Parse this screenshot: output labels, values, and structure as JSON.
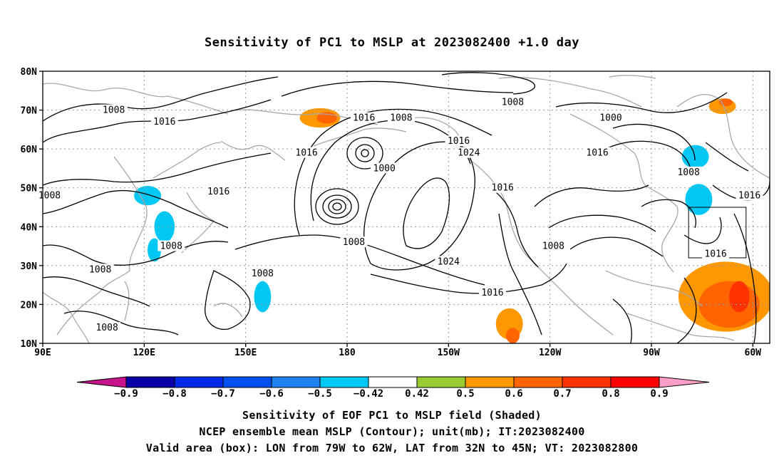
{
  "title": "Sensitivity of PC1 to MSLP at 2023082400 +1.0 day",
  "map": {
    "lon_range": [
      90,
      305
    ],
    "lat_range": [
      10,
      80
    ],
    "lat_ticks": [
      "80N",
      "70N",
      "60N",
      "50N",
      "40N",
      "30N",
      "20N",
      "10N"
    ],
    "lon_ticks": [
      "90E",
      "120E",
      "150E",
      "180",
      "150W",
      "120W",
      "90W",
      "60W"
    ],
    "coast_color": "#a8a8a8",
    "contour_color": "#000000"
  },
  "contour_labels": [
    {
      "text": "1008",
      "lon": 111,
      "lat": 70
    },
    {
      "text": "1016",
      "lon": 126,
      "lat": 67
    },
    {
      "text": "1016",
      "lon": 168,
      "lat": 59
    },
    {
      "text": "1016",
      "lon": 142,
      "lat": 49
    },
    {
      "text": "1008",
      "lon": 92,
      "lat": 48
    },
    {
      "text": "1008",
      "lon": 128,
      "lat": 35
    },
    {
      "text": "1008",
      "lon": 107,
      "lat": 29
    },
    {
      "text": "1008",
      "lon": 109,
      "lat": 14
    },
    {
      "text": "1008",
      "lon": 155,
      "lat": 28
    },
    {
      "text": "1016",
      "lon": 185,
      "lat": 68
    },
    {
      "text": "1008",
      "lon": 196,
      "lat": 68
    },
    {
      "text": "1000",
      "lon": 191,
      "lat": 55
    },
    {
      "text": "1008",
      "lon": 182,
      "lat": 36
    },
    {
      "text": "1016",
      "lon": 213,
      "lat": 62
    },
    {
      "text": "1024",
      "lon": 216,
      "lat": 59
    },
    {
      "text": "1024",
      "lon": 210,
      "lat": 31
    },
    {
      "text": "1008",
      "lon": 229,
      "lat": 72
    },
    {
      "text": "1016",
      "lon": 226,
      "lat": 50
    },
    {
      "text": "1008",
      "lon": 241,
      "lat": 35
    },
    {
      "text": "1016",
      "lon": 223,
      "lat": 23
    },
    {
      "text": "1000",
      "lon": 258,
      "lat": 68
    },
    {
      "text": "1016",
      "lon": 254,
      "lat": 59
    },
    {
      "text": "1008",
      "lon": 281,
      "lat": 54
    },
    {
      "text": "1016",
      "lon": 299,
      "lat": 48
    },
    {
      "text": "1016",
      "lon": 289,
      "lat": 33
    }
  ],
  "valid_box": {
    "lon_min": 281,
    "lon_max": 298,
    "lat_min": 32,
    "lat_max": 45
  },
  "sensitivity_regions": [
    {
      "lon": 121,
      "lat": 48,
      "rx": 4,
      "ry": 2.5,
      "level": -0.6
    },
    {
      "lon": 126,
      "lat": 40,
      "rx": 3,
      "ry": 4,
      "level": -0.5
    },
    {
      "lon": 123,
      "lat": 34,
      "rx": 2,
      "ry": 3,
      "level": -0.5
    },
    {
      "lon": 172,
      "lat": 68,
      "rx": 6,
      "ry": 2.5,
      "level": 0.5
    },
    {
      "lon": 174,
      "lat": 68,
      "rx": 3,
      "ry": 1.5,
      "level": 0.6
    },
    {
      "lon": 155,
      "lat": 22,
      "rx": 2.5,
      "ry": 4,
      "level": -0.6
    },
    {
      "lon": 228,
      "lat": 15,
      "rx": 4,
      "ry": 4,
      "level": 0.5
    },
    {
      "lon": 229,
      "lat": 12,
      "rx": 2,
      "ry": 2,
      "level": 0.6
    },
    {
      "lon": 291,
      "lat": 71,
      "rx": 4,
      "ry": 2,
      "level": 0.5
    },
    {
      "lon": 292,
      "lat": 72,
      "rx": 2,
      "ry": 1,
      "level": 0.6
    },
    {
      "lon": 283,
      "lat": 58,
      "rx": 4,
      "ry": 3,
      "level": -0.5
    },
    {
      "lon": 284,
      "lat": 47,
      "rx": 4,
      "ry": 4,
      "level": -0.6
    },
    {
      "lon": 292,
      "lat": 22,
      "rx": 14,
      "ry": 9,
      "level": 0.5
    },
    {
      "lon": 293,
      "lat": 20,
      "rx": 9,
      "ry": 6,
      "level": 0.6
    },
    {
      "lon": 296,
      "lat": 22,
      "rx": 3,
      "ry": 4,
      "level": 0.7
    }
  ],
  "colorbar": {
    "labels": [
      "−0.9",
      "−0.8",
      "−0.7",
      "−0.6",
      "−0.5",
      "−0.42",
      "0.42",
      "0.5",
      "0.6",
      "0.7",
      "0.8",
      "0.9"
    ],
    "colors": [
      "#0a00a8",
      "#0028e6",
      "#0050f0",
      "#1e82f0",
      "#00c8f5",
      "#ffffff",
      "#98cc32",
      "#ff9800",
      "#ff6400",
      "#ff3200",
      "#ff0000"
    ],
    "low_end_color": "#c8148c",
    "high_end_color": "#ff9ec8"
  },
  "captions": [
    "Sensitivity of EOF PC1 to MSLP field (Shaded)",
    "NCEP ensemble mean MSLP (Contour); unit(mb); IT:2023082400",
    "Valid area (box): LON from 79W to 62W, LAT from 32N to 45N; VT: 2023082800"
  ]
}
